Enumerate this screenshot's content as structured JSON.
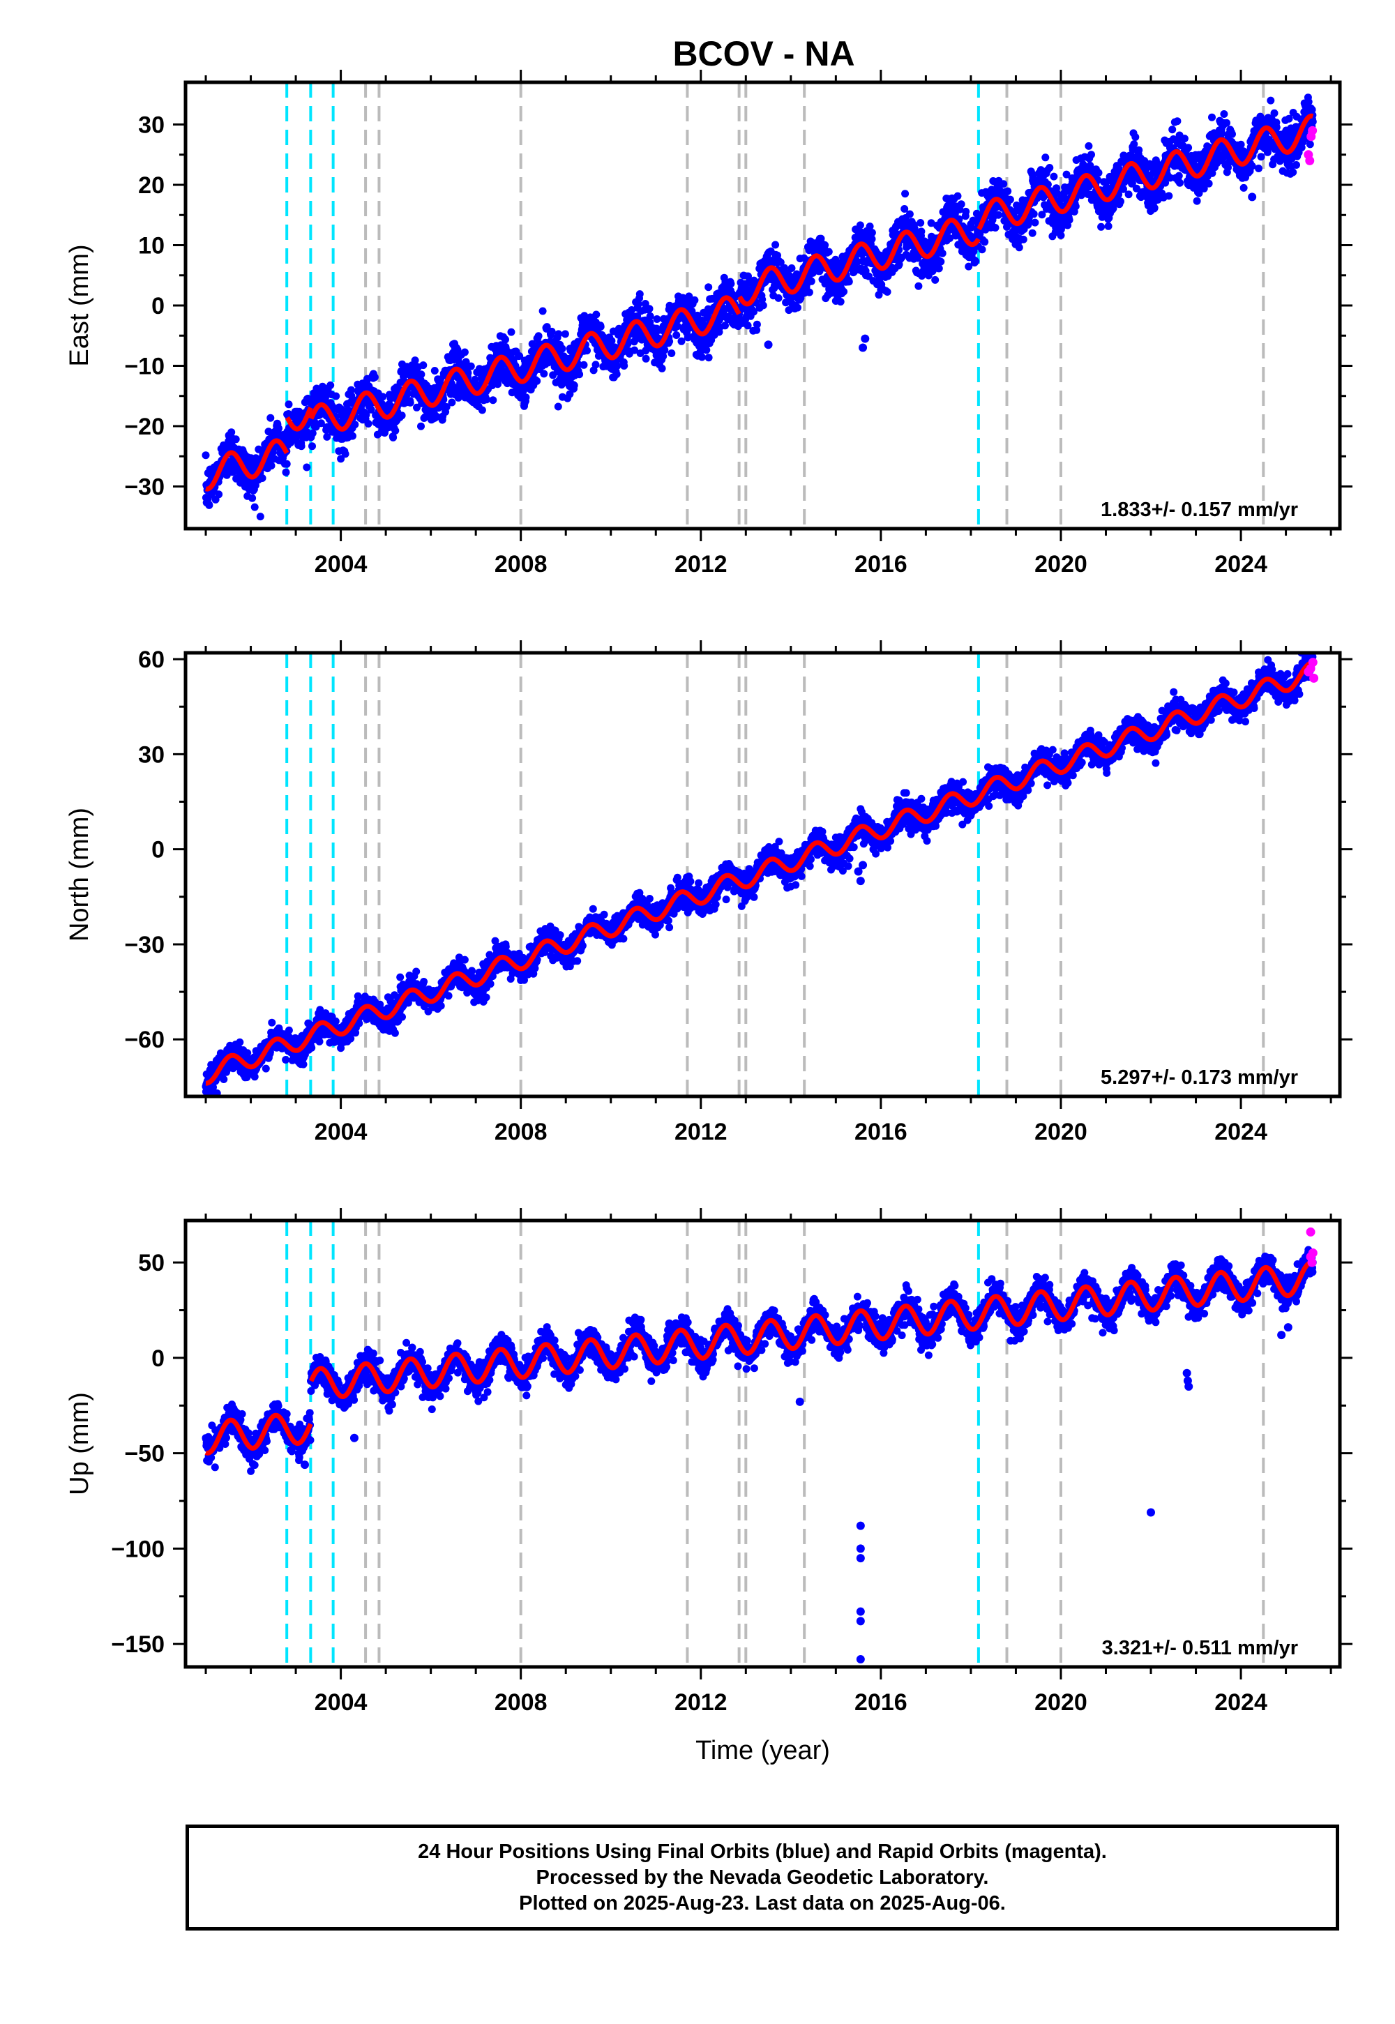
{
  "title": "BCOV - NA",
  "colors": {
    "final_orbits": "#0000ff",
    "rapid_orbits": "#ff00ff",
    "model": "#ff0000",
    "event_cyan": "#00e5ff",
    "event_gray": "#bbbbbb"
  },
  "footer": {
    "line1": "24 Hour Positions Using Final Orbits (blue) and Rapid Orbits (magenta).",
    "line2": "Processed by the Nevada Geodetic Laboratory.",
    "line3": "Plotted on 2025-Aug-23. Last data on 2025-Aug-06."
  },
  "chart_data": [
    {
      "type": "scatter",
      "ylabel": "East (mm)",
      "xlim": [
        2000.55,
        2026.2
      ],
      "ylim": [
        -37,
        37
      ],
      "x_ticks": [
        2004,
        2008,
        2012,
        2016,
        2020,
        2024
      ],
      "y_ticks": [
        30,
        20,
        10,
        0,
        -10,
        -20,
        -30
      ],
      "rate_text": "1.833+/- 0.157 mm/yr",
      "event_lines": {
        "cyan": [
          2002.8,
          2003.33,
          2003.83,
          2018.17
        ],
        "gray": [
          2004.55,
          2004.85,
          2008.0,
          2011.7,
          2012.85,
          2013.0,
          2014.3,
          2018.8,
          2020.0,
          2024.5
        ]
      },
      "model": {
        "start_year": 2001.0,
        "end_year": 2025.6,
        "start_value": -28,
        "end_value": 29,
        "seasonal_amplitude": 2.5,
        "scatter": 2.0,
        "steps": [
          {
            "year": 2002.8,
            "delta": 6
          },
          {
            "year": 2003.33,
            "delta": -2
          },
          {
            "year": 2012.85,
            "delta": 3
          },
          {
            "year": 2018.17,
            "delta": 1.5
          }
        ]
      },
      "outliers": [
        {
          "x": 2015.6,
          "y": -7
        },
        {
          "x": 2015.65,
          "y": -5.5
        },
        {
          "x": 2024.25,
          "y": 18
        },
        {
          "x": 2013.5,
          "y": -6.5
        }
      ],
      "rapid_points": [
        {
          "x": 2025.5,
          "y": 25
        },
        {
          "x": 2025.53,
          "y": 24
        },
        {
          "x": 2025.56,
          "y": 28
        },
        {
          "x": 2025.59,
          "y": 29
        }
      ]
    },
    {
      "type": "scatter",
      "ylabel": "North (mm)",
      "xlim": [
        2000.55,
        2026.2
      ],
      "ylim": [
        -78,
        62
      ],
      "x_ticks": [
        2004,
        2008,
        2012,
        2016,
        2020,
        2024
      ],
      "y_ticks": [
        60,
        30,
        0,
        -30,
        -60
      ],
      "rate_text": "5.297+/- 0.173 mm/yr",
      "event_lines": {
        "cyan": [
          2002.8,
          2003.33,
          2003.83,
          2018.17
        ],
        "gray": [
          2004.55,
          2004.85,
          2008.0,
          2011.7,
          2012.85,
          2013.0,
          2014.3,
          2018.8,
          2020.0,
          2024.5
        ]
      },
      "model": {
        "start_year": 2001.0,
        "end_year": 2025.6,
        "start_value": -71,
        "end_value": 56,
        "seasonal_amplitude": 3.0,
        "scatter": 2.2,
        "steps": []
      },
      "outliers": [
        {
          "x": 2015.5,
          "y": -7
        },
        {
          "x": 2015.55,
          "y": -10
        },
        {
          "x": 2015.6,
          "y": -5
        }
      ],
      "rapid_points": [
        {
          "x": 2025.5,
          "y": 56
        },
        {
          "x": 2025.55,
          "y": 57
        },
        {
          "x": 2025.6,
          "y": 59
        },
        {
          "x": 2025.62,
          "y": 54
        }
      ]
    },
    {
      "type": "scatter",
      "ylabel": "Up (mm)",
      "xlim": [
        2000.55,
        2026.2
      ],
      "ylim": [
        -162,
        72
      ],
      "x_ticks": [
        2004,
        2008,
        2012,
        2016,
        2020,
        2024
      ],
      "y_ticks": [
        50,
        0,
        -50,
        -100,
        -150
      ],
      "x_title": "Time (year)",
      "rate_text": "3.321+/- 0.511 mm/yr",
      "event_lines": {
        "cyan": [
          2002.8,
          2003.33,
          2003.83,
          2018.17
        ],
        "gray": [
          2004.55,
          2004.85,
          2008.0,
          2011.7,
          2012.85,
          2013.0,
          2014.3,
          2018.8,
          2020.0,
          2024.5
        ]
      },
      "model": {
        "start_year": 2001.0,
        "end_year": 2025.6,
        "start_value": -42,
        "end_value": 42,
        "seasonal_amplitude": 8.0,
        "scatter": 4.0,
        "steps": [
          {
            "year": 2003.33,
            "delta": 22
          }
        ]
      },
      "outliers": [
        {
          "x": 2015.55,
          "y": -88
        },
        {
          "x": 2015.55,
          "y": -100
        },
        {
          "x": 2015.55,
          "y": -105
        },
        {
          "x": 2015.55,
          "y": -133
        },
        {
          "x": 2015.55,
          "y": -138
        },
        {
          "x": 2015.55,
          "y": -158
        },
        {
          "x": 2022.0,
          "y": -81
        },
        {
          "x": 2022.8,
          "y": -8
        },
        {
          "x": 2022.82,
          "y": -12
        },
        {
          "x": 2022.84,
          "y": -15
        },
        {
          "x": 2024.9,
          "y": 12
        },
        {
          "x": 2025.05,
          "y": 16
        },
        {
          "x": 2014.2,
          "y": -23
        },
        {
          "x": 2011.3,
          "y": 18
        },
        {
          "x": 2003.2,
          "y": -56
        },
        {
          "x": 2004.3,
          "y": -42
        }
      ],
      "rapid_points": [
        {
          "x": 2025.55,
          "y": 66
        },
        {
          "x": 2025.55,
          "y": 53
        },
        {
          "x": 2025.58,
          "y": 50
        },
        {
          "x": 2025.6,
          "y": 55
        }
      ]
    }
  ]
}
